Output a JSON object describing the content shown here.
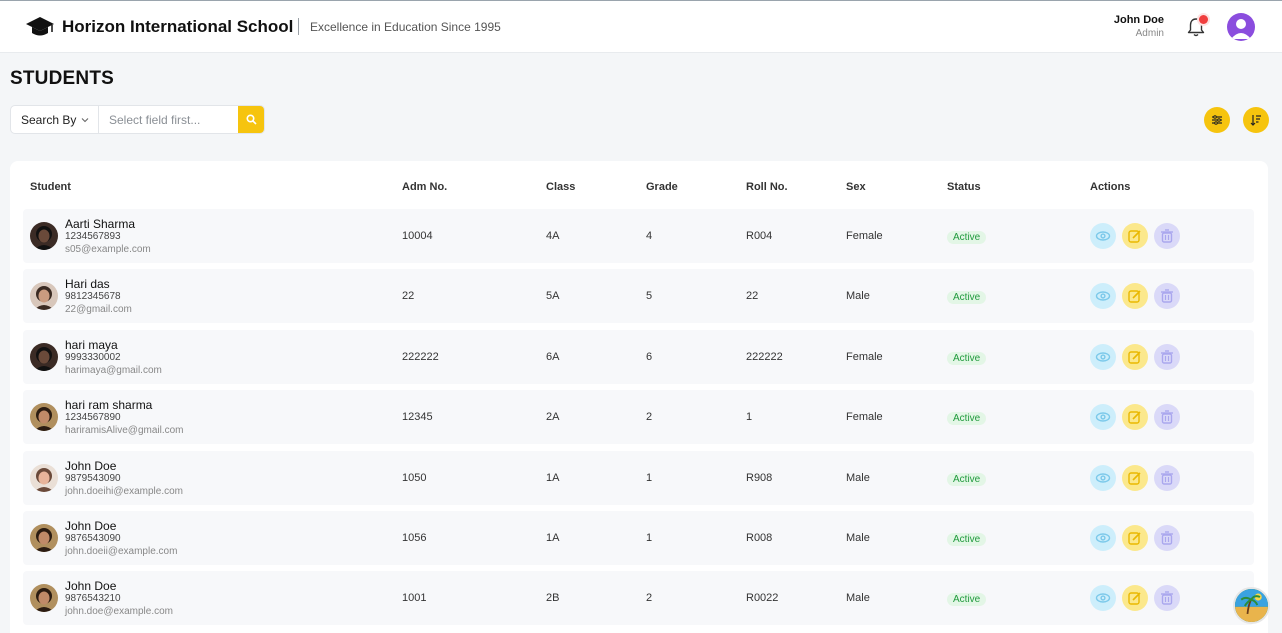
{
  "header": {
    "school_name": "Horizon International School",
    "tagline": "Excellence in Education Since 1995",
    "user_name": "John Doe",
    "user_role": "Admin",
    "has_notification": true
  },
  "page": {
    "title": "STUDENTS"
  },
  "search": {
    "search_by_label": "Search By",
    "placeholder": "Select field first..."
  },
  "icons": {
    "logo": "graduation-cap-icon",
    "bell": "bell-icon",
    "search": "search-icon",
    "filter": "sliders-icon",
    "sort": "sort-icon",
    "view": "eye-icon",
    "edit": "edit-icon",
    "delete": "trash-icon"
  },
  "colors": {
    "accent": "#f6c40e",
    "status_active_bg": "#e3f6e6",
    "status_active_text": "#219a3d",
    "avatar_bg": "#8b4dde"
  },
  "table": {
    "columns": [
      "Student",
      "Adm No.",
      "Class",
      "Grade",
      "Roll No.",
      "Sex",
      "Status",
      "Actions"
    ],
    "rows": [
      {
        "name": "Aarti Sharma",
        "phone": "1234567893",
        "email": "s05@example.com",
        "adm_no": "10004",
        "class": "4A",
        "grade": "4",
        "roll_no": "R004",
        "sex": "Female",
        "status": "Active"
      },
      {
        "name": "Hari das",
        "phone": "9812345678",
        "email": "22@gmail.com",
        "adm_no": "22",
        "class": "5A",
        "grade": "5",
        "roll_no": "22",
        "sex": "Male",
        "status": "Active"
      },
      {
        "name": "hari maya",
        "phone": "9993330002",
        "email": "harimaya@gmail.com",
        "adm_no": "222222",
        "class": "6A",
        "grade": "6",
        "roll_no": "222222",
        "sex": "Female",
        "status": "Active"
      },
      {
        "name": "hari ram sharma",
        "phone": "1234567890",
        "email": "hariramisAlive@gmail.com",
        "adm_no": "12345",
        "class": "2A",
        "grade": "2",
        "roll_no": "1",
        "sex": "Female",
        "status": "Active"
      },
      {
        "name": "John Doe",
        "phone": "9879543090",
        "email": "john.doeihi@example.com",
        "adm_no": "1050",
        "class": "1A",
        "grade": "1",
        "roll_no": "R908",
        "sex": "Male",
        "status": "Active"
      },
      {
        "name": "John Doe",
        "phone": "9876543090",
        "email": "john.doeii@example.com",
        "adm_no": "1056",
        "class": "1A",
        "grade": "1",
        "roll_no": "R008",
        "sex": "Male",
        "status": "Active"
      },
      {
        "name": "John Doe",
        "phone": "9876543210",
        "email": "john.doe@example.com",
        "adm_no": "1001",
        "class": "2B",
        "grade": "2",
        "roll_no": "R0022",
        "sex": "Male",
        "status": "Active"
      }
    ]
  }
}
